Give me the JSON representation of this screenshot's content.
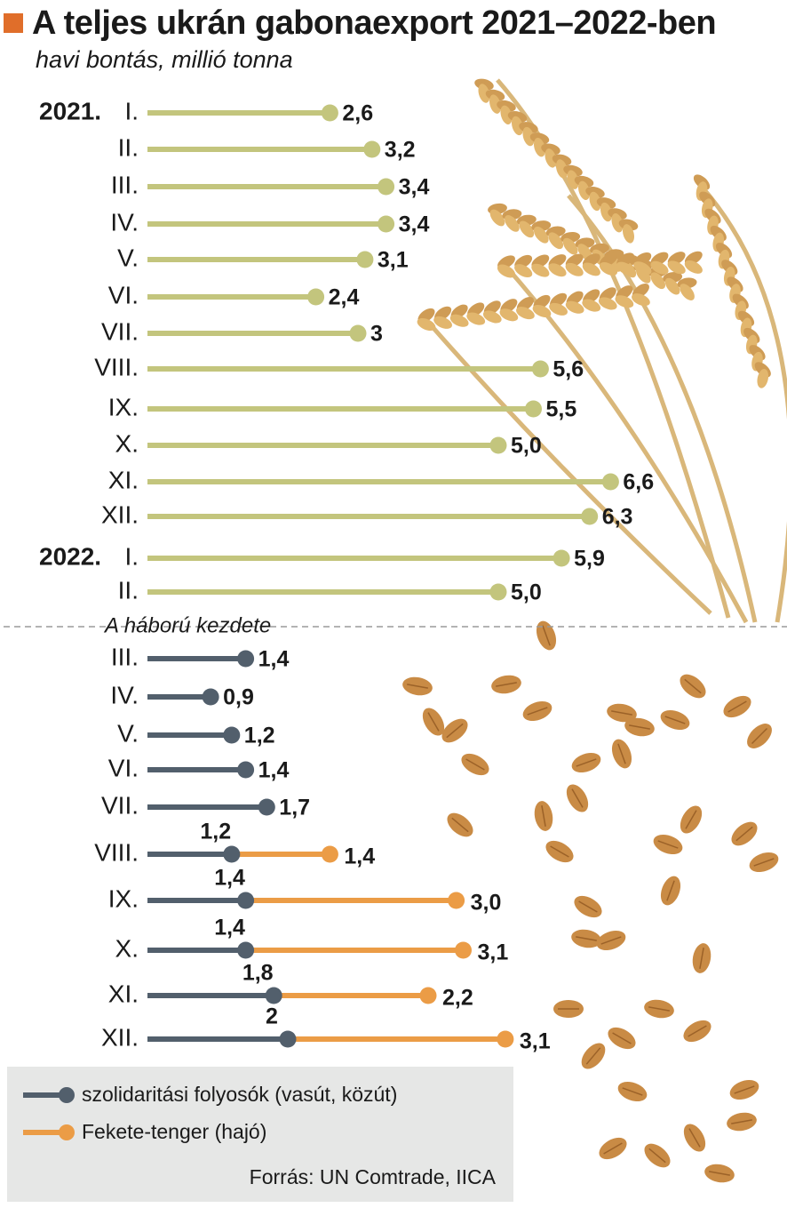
{
  "header": {
    "title": "A teljes ukrán gabonaexport 2021–2022-ben",
    "subtitle": "havi bontás, millió tonna"
  },
  "colors": {
    "title_marker": "#e06e2a",
    "pre_war": "#c3c57d",
    "rail_road": "#525f6c",
    "black_sea": "#eb9c46",
    "legend_bg": "#e6e7e6"
  },
  "war_start_label": "A háború kezdete",
  "legend": {
    "rail_road": "szolidaritási folyosók (vasút, közút)",
    "black_sea": "Fekete-tenger (hajó)"
  },
  "source": "Forrás: UN Comtrade, IICA",
  "chart_data": {
    "type": "bar",
    "unit": "millió tonna",
    "pre_war": [
      {
        "year": "2021.",
        "month": "I.",
        "value": 2.6,
        "label": "2,6"
      },
      {
        "year": "",
        "month": "II.",
        "value": 3.2,
        "label": "3,2"
      },
      {
        "year": "",
        "month": "III.",
        "value": 3.4,
        "label": "3,4"
      },
      {
        "year": "",
        "month": "IV.",
        "value": 3.4,
        "label": "3,4"
      },
      {
        "year": "",
        "month": "V.",
        "value": 3.1,
        "label": "3,1"
      },
      {
        "year": "",
        "month": "VI.",
        "value": 2.4,
        "label": "2,4"
      },
      {
        "year": "",
        "month": "VII.",
        "value": 3.0,
        "label": "3"
      },
      {
        "year": "",
        "month": "VIII.",
        "value": 5.6,
        "label": "5,6"
      },
      {
        "year": "",
        "month": "IX.",
        "value": 5.5,
        "label": "5,5"
      },
      {
        "year": "",
        "month": "X.",
        "value": 5.0,
        "label": "5,0"
      },
      {
        "year": "",
        "month": "XI.",
        "value": 6.6,
        "label": "6,6"
      },
      {
        "year": "",
        "month": "XII.",
        "value": 6.3,
        "label": "6,3"
      },
      {
        "year": "2022.",
        "month": "I.",
        "value": 5.9,
        "label": "5,9"
      },
      {
        "year": "",
        "month": "II.",
        "value": 5.0,
        "label": "5,0"
      }
    ],
    "post_war": [
      {
        "month": "III.",
        "rail": 1.4,
        "rail_label": "1,4",
        "sea": null,
        "sea_label": ""
      },
      {
        "month": "IV.",
        "rail": 0.9,
        "rail_label": "0,9",
        "sea": null,
        "sea_label": ""
      },
      {
        "month": "V.",
        "rail": 1.2,
        "rail_label": "1,2",
        "sea": null,
        "sea_label": ""
      },
      {
        "month": "VI.",
        "rail": 1.4,
        "rail_label": "1,4",
        "sea": null,
        "sea_label": ""
      },
      {
        "month": "VII.",
        "rail": 1.7,
        "rail_label": "1,7",
        "sea": null,
        "sea_label": ""
      },
      {
        "month": "VIII.",
        "rail": 1.2,
        "rail_label": "1,2",
        "sea": 1.4,
        "sea_label": "1,4"
      },
      {
        "month": "IX.",
        "rail": 1.4,
        "rail_label": "1,4",
        "sea": 3.0,
        "sea_label": "3,0"
      },
      {
        "month": "X.",
        "rail": 1.4,
        "rail_label": "1,4",
        "sea": 3.1,
        "sea_label": "3,1"
      },
      {
        "month": "XI.",
        "rail": 1.8,
        "rail_label": "1,8",
        "sea": 2.2,
        "sea_label": "2,2"
      },
      {
        "month": "XII.",
        "rail": 2.0,
        "rail_label": "2",
        "sea": 3.1,
        "sea_label": "3,1"
      }
    ]
  }
}
